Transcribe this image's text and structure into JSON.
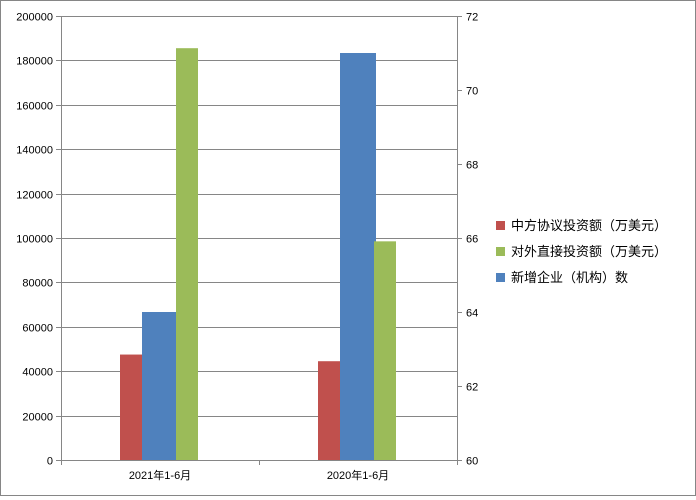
{
  "chart_data": {
    "type": "bar",
    "categories": [
      "2021年1-6月",
      "2020年1-6月"
    ],
    "y_left": {
      "ylim": [
        0,
        200000
      ],
      "ticks": [
        "0",
        "20000",
        "40000",
        "60000",
        "80000",
        "100000",
        "120000",
        "140000",
        "160000",
        "180000",
        "200000"
      ]
    },
    "y_right": {
      "ylim": [
        60,
        72
      ],
      "ticks": [
        "60",
        "62",
        "64",
        "66",
        "68",
        "70",
        "72"
      ]
    },
    "series": [
      {
        "name": "中方协议投资额（万美元）",
        "axis": "left",
        "color": "#c0504d",
        "values": [
          47500,
          44500
        ]
      },
      {
        "name": "新增企业（机构）数",
        "axis": "right",
        "color": "#4f81bd",
        "values": [
          64,
          71
        ]
      },
      {
        "name": "对外直接投资额（万美元）",
        "axis": "left",
        "color": "#9bbb59",
        "values": [
          185500,
          98500
        ]
      }
    ],
    "legend": {
      "placement": "right",
      "items": [
        "中方协议投资额（万美元）",
        "对外直接投资额（万美元）",
        "新增企业（机构）数"
      ]
    },
    "grid": true
  }
}
